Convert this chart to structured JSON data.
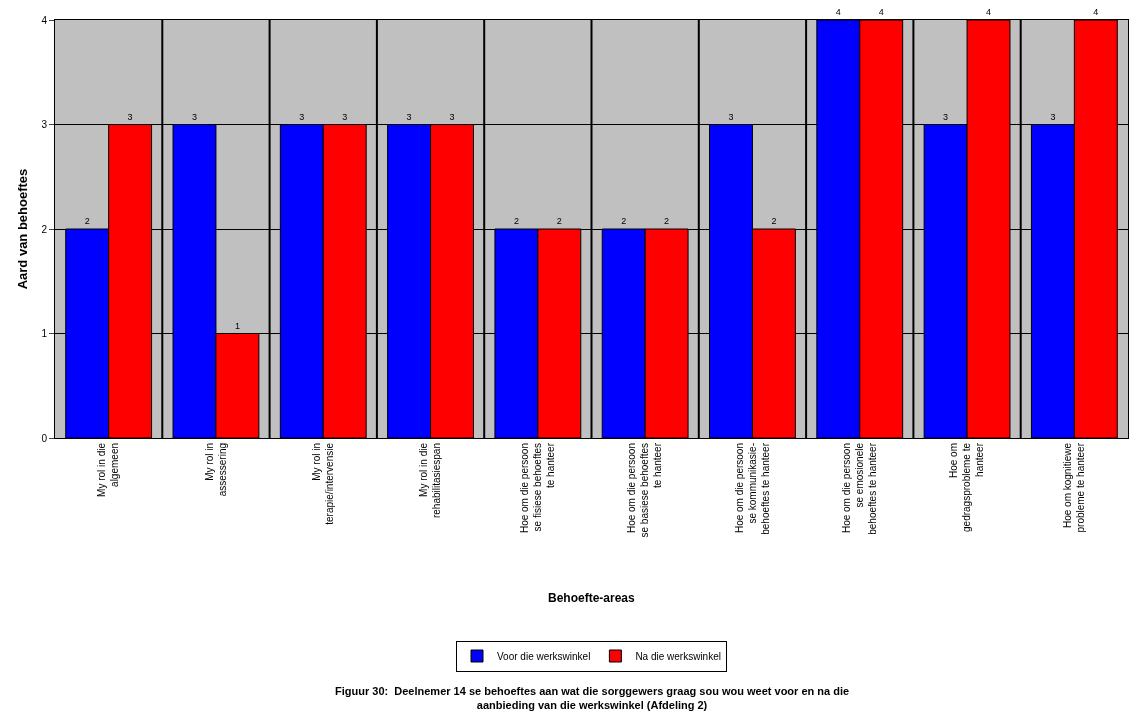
{
  "chart_data": {
    "type": "bar",
    "title": "Figuur 30:  Deelnemer 14 se behoeftes aan wat die sorggewers graag sou wou weet voor en na die aanbieding van die werkswinkel (Afdeling 2)",
    "xlabel": "Behoefte-areas",
    "ylabel": "Aard van behoeftes",
    "categories": [
      "My rol in die algemeen",
      "My rol in assessering",
      "My rol in terapie/intervensie",
      "My rol in die rehabilitasiespan",
      "Hoe om die persoon se fisiese behoeftes te hanteer",
      "Hoe om die persoon se basiese behoeftes te hanteer",
      "Hoe om die persoon se kommunikasie-behoeftes te hanteer",
      "Hoe om die persoon se emosionele behoeftes te hanteer",
      "Hoe om gedragsprobleme te hanteer",
      "Hoe om kognitiewe probleme te hanteer"
    ],
    "series": [
      {
        "name": "Voor die werkswinkel",
        "color": "#0000ff",
        "values": [
          2,
          3,
          3,
          3,
          2,
          2,
          3,
          4,
          3,
          3
        ]
      },
      {
        "name": "Na die werkswinkel",
        "color": "#ff0000",
        "values": [
          3,
          1,
          3,
          3,
          2,
          2,
          2,
          4,
          4,
          4
        ]
      }
    ],
    "ylim": [
      0,
      4
    ],
    "yticks": [
      0,
      1,
      2,
      3,
      4
    ],
    "grid": true,
    "legend": "bottom",
    "data_labels": true
  }
}
